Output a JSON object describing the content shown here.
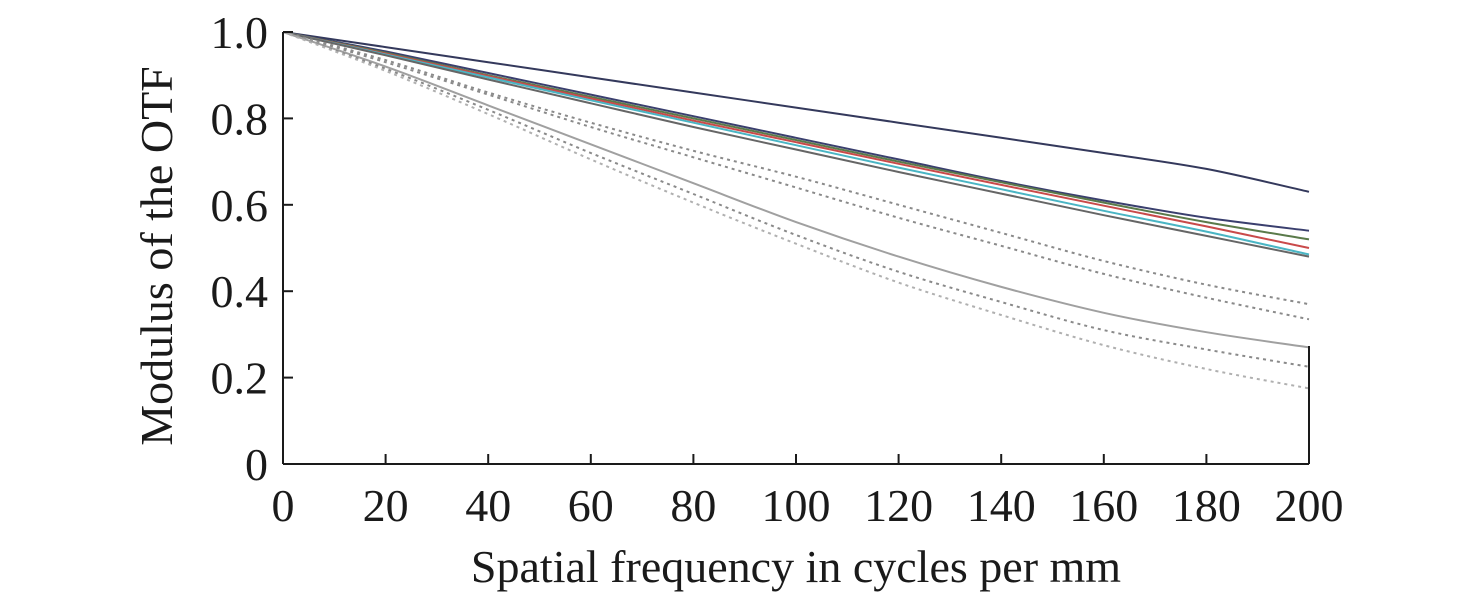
{
  "chart_data": {
    "type": "line",
    "title": "",
    "xlabel": "Spatial frequency in cycles per mm",
    "ylabel": "Modulus of the OTF",
    "xlim": [
      0,
      200
    ],
    "ylim": [
      0,
      1.0
    ],
    "x_ticks": [
      0,
      20,
      40,
      60,
      80,
      100,
      120,
      140,
      160,
      180,
      200
    ],
    "y_ticks": [
      0,
      0.2,
      0.4,
      0.6,
      0.8,
      1.0
    ],
    "x_tick_labels": [
      "0",
      "20",
      "40",
      "60",
      "80",
      "100",
      "120",
      "140",
      "160",
      "180",
      "200"
    ],
    "y_tick_labels": [
      "0",
      "0.2",
      "0.4",
      "0.6",
      "0.8",
      "1.0"
    ],
    "grid": false,
    "legend": "none",
    "x": [
      0,
      20,
      40,
      60,
      80,
      100,
      120,
      140,
      160,
      180,
      200
    ],
    "series": [
      {
        "color": "#34395c",
        "dash": "solid",
        "values": [
          1.0,
          0.965,
          0.93,
          0.895,
          0.86,
          0.825,
          0.79,
          0.755,
          0.72,
          0.683,
          0.63
        ]
      },
      {
        "color": "#3a3f6e",
        "dash": "solid",
        "values": [
          1.0,
          0.955,
          0.905,
          0.855,
          0.805,
          0.755,
          0.705,
          0.655,
          0.61,
          0.57,
          0.54
        ]
      },
      {
        "color": "#5a7a4a",
        "dash": "solid",
        "values": [
          1.0,
          0.952,
          0.9,
          0.85,
          0.8,
          0.75,
          0.7,
          0.652,
          0.605,
          0.56,
          0.52
        ]
      },
      {
        "color": "#c94a4a",
        "dash": "solid",
        "values": [
          1.0,
          0.95,
          0.898,
          0.846,
          0.795,
          0.745,
          0.695,
          0.646,
          0.598,
          0.55,
          0.5
        ]
      },
      {
        "color": "#4ab5c4",
        "dash": "solid",
        "values": [
          1.0,
          0.948,
          0.895,
          0.842,
          0.79,
          0.738,
          0.686,
          0.636,
          0.586,
          0.538,
          0.485
        ]
      },
      {
        "color": "#666666",
        "dash": "solid",
        "values": [
          1.0,
          0.946,
          0.89,
          0.835,
          0.78,
          0.728,
          0.676,
          0.626,
          0.576,
          0.528,
          0.48
        ]
      },
      {
        "color": "#8a8a8a",
        "dash": "dotted",
        "values": [
          1.0,
          0.935,
          0.86,
          0.79,
          0.725,
          0.665,
          0.6,
          0.535,
          0.47,
          0.415,
          0.37
        ]
      },
      {
        "color": "#8a8a8a",
        "dash": "dotted",
        "values": [
          1.0,
          0.93,
          0.855,
          0.78,
          0.71,
          0.64,
          0.57,
          0.505,
          0.44,
          0.385,
          0.335
        ]
      },
      {
        "color": "#a0a0a0",
        "dash": "solid",
        "values": [
          1.0,
          0.92,
          0.83,
          0.74,
          0.65,
          0.56,
          0.48,
          0.41,
          0.35,
          0.305,
          0.27
        ]
      },
      {
        "color": "#8a8a8a",
        "dash": "dotted",
        "values": [
          1.0,
          0.915,
          0.82,
          0.72,
          0.625,
          0.53,
          0.445,
          0.375,
          0.31,
          0.265,
          0.225
        ]
      },
      {
        "color": "#b0b0b0",
        "dash": "dotted",
        "values": [
          1.0,
          0.91,
          0.81,
          0.705,
          0.605,
          0.51,
          0.42,
          0.345,
          0.275,
          0.22,
          0.175
        ]
      }
    ]
  }
}
